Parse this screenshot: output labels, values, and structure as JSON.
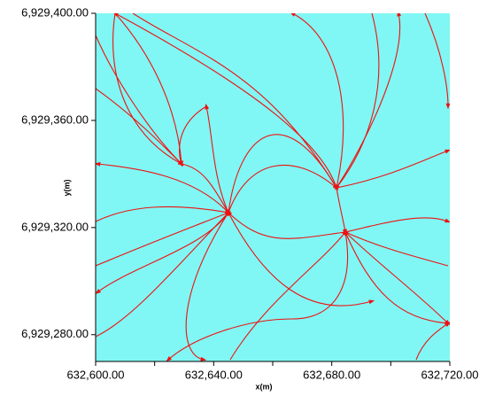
{
  "chart_data": {
    "type": "streamline",
    "x_label": "x(m)",
    "y_label": "y(m)",
    "xlim": [
      632600,
      632720
    ],
    "xticks": [
      {
        "value": 632600,
        "label": "632,600.00"
      },
      {
        "value": 632640,
        "label": "632,640.00"
      },
      {
        "value": 632680,
        "label": "632,680.00"
      },
      {
        "value": 632720,
        "label": "632,720.00"
      }
    ],
    "xminorticks": [
      632620,
      632660,
      632700
    ],
    "ylim": [
      6929270,
      6929400
    ],
    "yticks": [
      {
        "value": 6929280,
        "label": "6,929,280.00"
      },
      {
        "value": 6929320,
        "label": "6,929,320.00"
      },
      {
        "value": 6929360,
        "label": "6,929,360.00"
      },
      {
        "value": 6929400,
        "label": "6,929,400.00"
      }
    ],
    "background": "#80f7f4",
    "color": "#ee1111"
  }
}
